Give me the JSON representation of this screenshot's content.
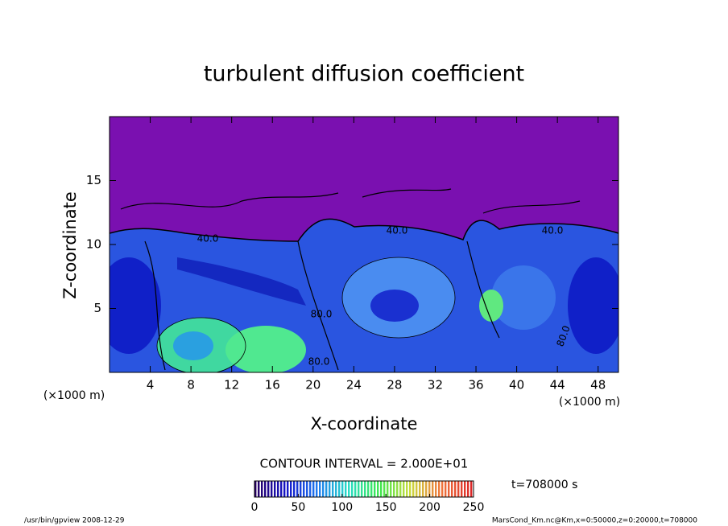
{
  "chart_data": {
    "type": "contour",
    "title": "turbulent diffusion coefficient",
    "x_label": "X-coordinate",
    "y_label": "Z-coordinate",
    "x_unit": "(×1000 m)",
    "y_unit": "(×1000 m)",
    "xlim": [
      0,
      50
    ],
    "xticks": [
      4,
      8,
      12,
      16,
      20,
      24,
      28,
      32,
      36,
      40,
      44,
      48
    ],
    "ylim": [
      0,
      20
    ],
    "yticks": [
      5,
      10,
      15
    ],
    "contour_labels": [
      "40.0",
      "40.0",
      "40.0",
      "80.0",
      "80.0",
      "80.0"
    ],
    "contour_interval": "CONTOUR INTERVAL = 2.000E+01",
    "time": "t=708000 s",
    "colorbar": {
      "lim": [
        0,
        250
      ],
      "ticks": [
        0,
        50,
        100,
        150,
        200,
        250
      ]
    },
    "footer_left": "/usr/bin/gpview  2008-12-29",
    "footer_right": "MarsCond_Km.nc@Km,x=0:50000,z=0:20000,t=708000"
  }
}
